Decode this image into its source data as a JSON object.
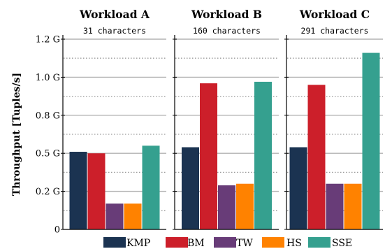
{
  "chart_data": {
    "type": "bar",
    "ylabel": "Throughput [Tuples/s]",
    "ylim": [
      0,
      1.2
    ],
    "yticks": [
      {
        "value": 0,
        "label": "0"
      },
      {
        "value": 0.25,
        "label": "0.2 G"
      },
      {
        "value": 0.5,
        "label": "0.5 G"
      },
      {
        "value": 0.75,
        "label": "0.8 G"
      },
      {
        "value": 1.0,
        "label": "1.0 G"
      },
      {
        "value": 1.25,
        "label": "1.2 G"
      }
    ],
    "grid": true,
    "legend_position": "bottom",
    "series": [
      {
        "name": "KMP",
        "color": "#1b3351"
      },
      {
        "name": "BM",
        "color": "#cc1f2a"
      },
      {
        "name": "TW",
        "color": "#683c78"
      },
      {
        "name": "HS",
        "color": "#ff8200"
      },
      {
        "name": "SSE",
        "color": "#35a08f"
      }
    ],
    "panels": [
      {
        "title": "Workload A",
        "subtitle": "31 characters",
        "values": [
          0.51,
          0.5,
          0.17,
          0.17,
          0.55
        ]
      },
      {
        "title": "Workload B",
        "subtitle": "160 characters",
        "values": [
          0.54,
          0.96,
          0.29,
          0.3,
          0.97
        ]
      },
      {
        "title": "Workload C",
        "subtitle": "291 characters",
        "values": [
          0.54,
          0.95,
          0.3,
          0.3,
          1.16
        ]
      }
    ]
  }
}
